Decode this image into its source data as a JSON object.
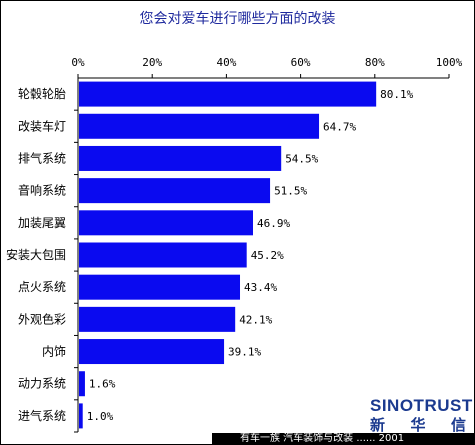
{
  "title": "您会对爱车进行哪些方面的改装",
  "chart_data": {
    "type": "bar",
    "orientation": "horizontal",
    "title": "您会对爱车进行哪些方面的改装",
    "categories": [
      "轮毂轮胎",
      "改装车灯",
      "排气系统",
      "音响系统",
      "加装尾翼",
      "安装大包围",
      "点火系统",
      "外观色彩",
      "内饰",
      "动力系统",
      "进气系统"
    ],
    "values": [
      80.1,
      64.7,
      54.5,
      51.5,
      46.9,
      45.2,
      43.4,
      42.1,
      39.1,
      1.6,
      1.0
    ],
    "value_labels": [
      "80.1%",
      "64.7%",
      "54.5%",
      "51.5%",
      "46.9%",
      "45.2%",
      "43.4%",
      "42.1%",
      "39.1%",
      "1.6%",
      "1.0%"
    ],
    "xlim": [
      0,
      100
    ],
    "xticks": [
      "0%",
      "20%",
      "40%",
      "60%",
      "80%",
      "100%"
    ],
    "xaxis_position": "top",
    "grid": false,
    "bar_color": "#0a0af0"
  },
  "logo": {
    "text_en": "SINOTRUST",
    "text_cn": [
      "新",
      "华",
      "信"
    ]
  },
  "source_text": "有车一族 汽车装饰与改装 ...... 2001"
}
